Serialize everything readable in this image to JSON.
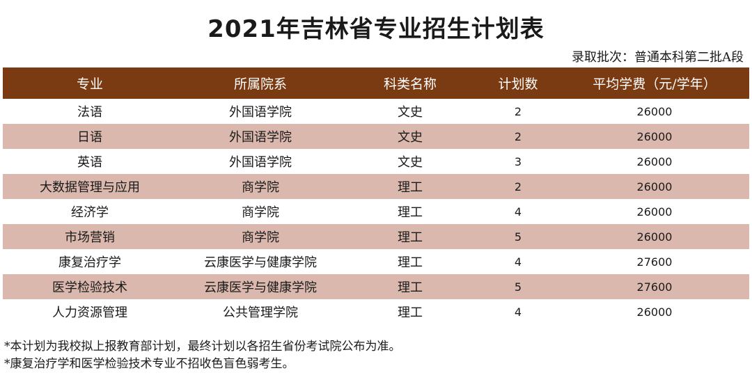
{
  "title": "2021年吉林省专业招生计划表",
  "batch": "录取批次：普通本科第二批A段",
  "table": {
    "headers": [
      "专业",
      "所属院系",
      "科类名称",
      "计划数",
      "平均学费（元/学年）"
    ],
    "rows": [
      [
        "法语",
        "外国语学院",
        "文史",
        "2",
        "26000"
      ],
      [
        "日语",
        "外国语学院",
        "文史",
        "2",
        "26000"
      ],
      [
        "英语",
        "外国语学院",
        "文史",
        "3",
        "26000"
      ],
      [
        "大数据管理与应用",
        "商学院",
        "理工",
        "2",
        "26000"
      ],
      [
        "经济学",
        "商学院",
        "理工",
        "4",
        "26000"
      ],
      [
        "市场营销",
        "商学院",
        "理工",
        "5",
        "26000"
      ],
      [
        "康复治疗学",
        "云康医学与健康学院",
        "理工",
        "4",
        "27600"
      ],
      [
        "医学检验技术",
        "云康医学与健康学院",
        "理工",
        "5",
        "27600"
      ],
      [
        "人力资源管理",
        "公共管理学院",
        "理工",
        "4",
        "26000"
      ]
    ]
  },
  "notes": [
    "*本计划为我校拟上报教育部计划，最终计划以各招生省份考试院公布为准。",
    "*康复治疗学和医学检验技术专业不招收色盲色弱考生。"
  ],
  "colors": {
    "header_bg": "#7a3a12",
    "stripe_bg": "#dbb8ad"
  }
}
